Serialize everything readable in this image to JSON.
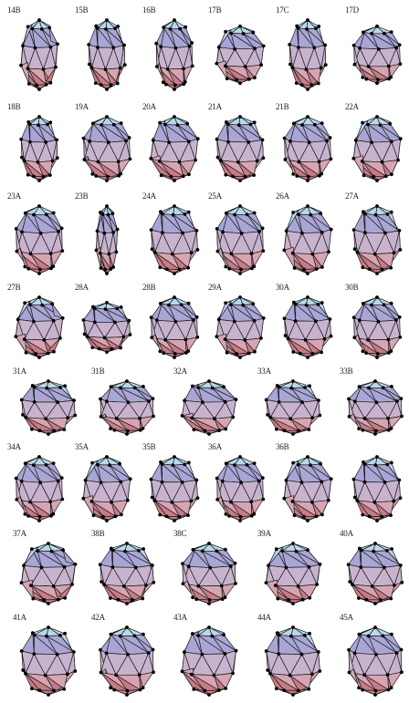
{
  "figure": {
    "rows": [
      {
        "clusters": [
          {
            "label": "14B",
            "shape": "tall"
          },
          {
            "label": "15B",
            "shape": "tall"
          },
          {
            "label": "16B",
            "shape": "tall"
          },
          {
            "label": "17B",
            "shape": "wide"
          },
          {
            "label": "17C",
            "shape": "tall"
          },
          {
            "label": "17D",
            "shape": "wide"
          }
        ]
      },
      {
        "clusters": [
          {
            "label": "18B",
            "shape": "tall"
          },
          {
            "label": "19A",
            "shape": "round"
          },
          {
            "label": "20A",
            "shape": "round"
          },
          {
            "label": "21A",
            "shape": "round"
          },
          {
            "label": "21B",
            "shape": "round"
          },
          {
            "label": "22A",
            "shape": "round"
          }
        ]
      },
      {
        "clusters": [
          {
            "label": "23A",
            "shape": "round"
          },
          {
            "label": "23B",
            "shape": "narrow"
          },
          {
            "label": "24A",
            "shape": "round"
          },
          {
            "label": "25A",
            "shape": "round"
          },
          {
            "label": "26A",
            "shape": "round"
          },
          {
            "label": "27A",
            "shape": "round"
          }
        ]
      },
      {
        "clusters": [
          {
            "label": "27B",
            "shape": "round"
          },
          {
            "label": "28A",
            "shape": "wide"
          },
          {
            "label": "28B",
            "shape": "round"
          },
          {
            "label": "29A",
            "shape": "round"
          },
          {
            "label": "30A",
            "shape": "round"
          },
          {
            "label": "30B",
            "shape": "round"
          }
        ]
      },
      {
        "clusters": [
          {
            "label": "31A",
            "shape": "round"
          },
          {
            "label": "31B",
            "shape": "round"
          },
          {
            "label": "32A",
            "shape": "round"
          },
          {
            "label": "33A",
            "shape": "round"
          },
          {
            "label": "33B",
            "shape": "round"
          }
        ]
      },
      {
        "clusters": [
          {
            "label": "34A",
            "shape": "round"
          },
          {
            "label": "35A",
            "shape": "round"
          },
          {
            "label": "35B",
            "shape": "round"
          },
          {
            "label": "36A",
            "shape": "round"
          },
          {
            "label": "36B",
            "shape": "round"
          },
          {
            "label": "",
            "shape": "round"
          }
        ]
      },
      {
        "clusters": [
          {
            "label": "37A",
            "shape": "round"
          },
          {
            "label": "38B",
            "shape": "round"
          },
          {
            "label": "38C",
            "shape": "round"
          },
          {
            "label": "39A",
            "shape": "round"
          },
          {
            "label": "40A",
            "shape": "round"
          }
        ]
      },
      {
        "clusters": [
          {
            "label": "41A",
            "shape": "round"
          },
          {
            "label": "42A",
            "shape": "round"
          },
          {
            "label": "43A",
            "shape": "round"
          },
          {
            "label": "44A",
            "shape": "round"
          },
          {
            "label": "45A",
            "shape": "round"
          }
        ]
      }
    ],
    "colors": {
      "top": "#b9d8e8",
      "upper": "#a9a6d6",
      "middle": "#c8b3cf",
      "lower": "#d6a5b4",
      "bottom": "#c97b85",
      "edge": "#1a1a1a",
      "vertex": "#000000"
    }
  }
}
